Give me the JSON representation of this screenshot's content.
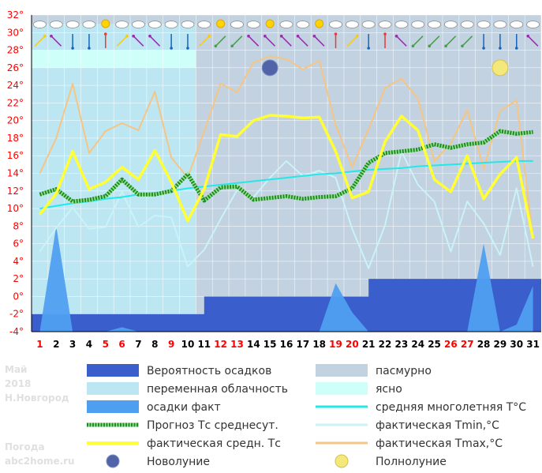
{
  "chart_data": {
    "type": "line",
    "title": "",
    "ylim": [
      -4,
      32
    ],
    "yticks": [
      "-4°",
      "-2°",
      "0°",
      "2°",
      "4°",
      "6°",
      "8°",
      "10°",
      "12°",
      "14°",
      "16°",
      "18°",
      "20°",
      "22°",
      "24°",
      "26°",
      "28°",
      "30°",
      "32°"
    ],
    "days": [
      "1",
      "2",
      "3",
      "4",
      "5",
      "6",
      "7",
      "8",
      "9",
      "10",
      "11",
      "12",
      "13",
      "14",
      "15",
      "16",
      "17",
      "18",
      "19",
      "20",
      "21",
      "22",
      "23",
      "24",
      "25",
      "26",
      "27",
      "28",
      "29",
      "30",
      "31"
    ],
    "day_colors": [
      "#ff0000",
      "#000000",
      "#000000",
      "#000000",
      "#ff0000",
      "#ff0000",
      "#000000",
      "#000000",
      "#ff0000",
      "#000000",
      "#000000",
      "#ff0000",
      "#ff0000",
      "#000000",
      "#000000",
      "#000000",
      "#000000",
      "#000000",
      "#ff0000",
      "#ff0000",
      "#000000",
      "#000000",
      "#000000",
      "#000000",
      "#000000",
      "#ff0000",
      "#ff0000",
      "#000000",
      "#000000",
      "#000000",
      "#000000"
    ],
    "watermark": {
      "month": "Май",
      "year": "2018",
      "city": "Н.Новгород",
      "site_line1": "Погода",
      "site_line2": "abc2home.ru"
    },
    "colors": {
      "probability": "#3a5fcd",
      "overcast": "#c2d2e0",
      "partly_cloudy": "#bde6f3",
      "clear": "#cffff9",
      "precip_fact": "#4f9ff0",
      "forecast_avg": "#1e8a2a",
      "actual_avg": "#ffff33",
      "climate_avg": "#22e8e8",
      "tmin": "#c9f3f7",
      "tmax": "#f5c584"
    },
    "sky_bands": [
      {
        "from": 1,
        "to": 10.5,
        "sky": "partly_cloudy"
      },
      {
        "from": 10.5,
        "to": 31,
        "sky": "overcast"
      }
    ],
    "probability_level": [
      -2,
      -2,
      -2,
      -2,
      -2,
      -2,
      -2,
      -2,
      -2,
      -2,
      0,
      0,
      0,
      0,
      0,
      0,
      0,
      0,
      0,
      0,
      2,
      2,
      2,
      2,
      2,
      2,
      2,
      2,
      2,
      2,
      2
    ],
    "series": [
      {
        "name": "фактическая Tmax,°C",
        "key": "tmax",
        "values": [
          14.0,
          18.0,
          24.2,
          16.3,
          18.8,
          19.7,
          18.9,
          23.3,
          15.8,
          13.5,
          18.8,
          24.2,
          23.2,
          26.6,
          27.3,
          27.0,
          25.8,
          26.8,
          19.5,
          14.7,
          19.0,
          23.7,
          24.8,
          22.5,
          15.4,
          17.4,
          21.2,
          14.5,
          21.1,
          22.3,
          6.5
        ]
      },
      {
        "name": "фактическая Tmin,°C",
        "key": "tmin",
        "values": [
          5.1,
          7.8,
          10.1,
          7.7,
          7.9,
          11.9,
          7.9,
          9.2,
          9.0,
          3.4,
          5.3,
          8.8,
          12.1,
          11.3,
          13.5,
          15.4,
          13.7,
          14.3,
          13.5,
          7.7,
          3.2,
          8.1,
          16.5,
          12.7,
          10.8,
          5.1,
          10.8,
          8.3,
          4.7,
          12.3,
          3.4
        ]
      },
      {
        "name": "средняя многолетняя T°C",
        "key": "climate_avg",
        "values": [
          10.0,
          10.3,
          10.6,
          10.8,
          11.1,
          11.3,
          11.6,
          11.8,
          12.0,
          12.3,
          12.5,
          12.7,
          12.9,
          13.1,
          13.3,
          13.5,
          13.7,
          13.9,
          14.0,
          14.2,
          14.4,
          14.5,
          14.6,
          14.8,
          14.9,
          15.0,
          15.1,
          15.2,
          15.3,
          15.4,
          15.4
        ]
      },
      {
        "name": "Прогноз Тс среднесут.",
        "key": "forecast_avg",
        "values": [
          11.6,
          12.2,
          10.8,
          11.0,
          11.4,
          13.3,
          11.6,
          11.6,
          12.0,
          13.9,
          10.9,
          12.4,
          12.5,
          11.0,
          11.2,
          11.4,
          11.1,
          11.3,
          11.4,
          12.3,
          15.2,
          16.3,
          16.5,
          16.7,
          17.3,
          16.9,
          17.3,
          17.5,
          18.8,
          18.5,
          18.7
        ]
      },
      {
        "name": "фактическая средн. Тс",
        "key": "actual_avg",
        "values": [
          9.3,
          11.7,
          16.5,
          12.2,
          13.0,
          14.7,
          13.3,
          16.6,
          13.0,
          8.6,
          12.2,
          18.4,
          18.2,
          20.0,
          20.6,
          20.5,
          20.3,
          20.4,
          16.5,
          11.2,
          11.9,
          17.6,
          20.5,
          18.9,
          13.3,
          11.9,
          16.0,
          11.1,
          13.9,
          15.8,
          6.6
        ]
      }
    ],
    "precipitation_fact": [
      -4,
      8,
      -4,
      -4,
      -4,
      -3.5,
      -4,
      -4,
      -4,
      -4,
      -4,
      -4,
      -4,
      -4,
      -4,
      -4,
      -4,
      -4,
      1.5,
      -1.8,
      -4,
      -4,
      -4,
      -4,
      -4,
      -4,
      -4,
      6,
      -4,
      -3.2,
      1.2
    ],
    "moons": [
      {
        "day": 15,
        "value": 26.0,
        "phase": "new"
      },
      {
        "day": 29,
        "value": 26.0,
        "phase": "full"
      }
    ],
    "weather_icons": [
      "cloud",
      "cloud",
      "cloud",
      "cloud",
      "sun",
      "cloud",
      "cloud",
      "cloud",
      "cloud",
      "cloud",
      "cloud",
      "sun",
      "cloud",
      "cloud",
      "sun",
      "cloud",
      "cloud",
      "sun",
      "cloud",
      "cloud",
      "cloud",
      "cloud",
      "cloud",
      "cloud",
      "cloud",
      "cloud",
      "cloud",
      "cloud",
      "cloud",
      "cloud",
      "cloud"
    ],
    "wind_arrows": [
      {
        "dir": "ne",
        "color": "#ffcc00"
      },
      {
        "dir": "nw",
        "color": "#9c27b0"
      },
      {
        "dir": "s",
        "color": "#1565c0"
      },
      {
        "dir": "s",
        "color": "#1565c0"
      },
      {
        "dir": "n",
        "color": "#e53935"
      },
      {
        "dir": "ne",
        "color": "#ffcc00"
      },
      {
        "dir": "nw",
        "color": "#9c27b0"
      },
      {
        "dir": "nw",
        "color": "#9c27b0"
      },
      {
        "dir": "s",
        "color": "#1565c0"
      },
      {
        "dir": "s",
        "color": "#1565c0"
      },
      {
        "dir": "ne",
        "color": "#ffcc00"
      },
      {
        "dir": "sw",
        "color": "#43a047"
      },
      {
        "dir": "sw",
        "color": "#43a047"
      },
      {
        "dir": "nw",
        "color": "#9c27b0"
      },
      {
        "dir": "nw",
        "color": "#9c27b0"
      },
      {
        "dir": "nw",
        "color": "#9c27b0"
      },
      {
        "dir": "nw",
        "color": "#9c27b0"
      },
      {
        "dir": "nw",
        "color": "#9c27b0"
      },
      {
        "dir": "n",
        "color": "#e53935"
      },
      {
        "dir": "ne",
        "color": "#ffcc00"
      },
      {
        "dir": "s",
        "color": "#1565c0"
      },
      {
        "dir": "n",
        "color": "#e53935"
      },
      {
        "dir": "nw",
        "color": "#9c27b0"
      },
      {
        "dir": "sw",
        "color": "#43a047"
      },
      {
        "dir": "sw",
        "color": "#43a047"
      },
      {
        "dir": "sw",
        "color": "#43a047"
      },
      {
        "dir": "sw",
        "color": "#43a047"
      },
      {
        "dir": "s",
        "color": "#1565c0"
      },
      {
        "dir": "s",
        "color": "#1565c0"
      },
      {
        "dir": "s",
        "color": "#1565c0"
      },
      {
        "dir": "nw",
        "color": "#9c27b0"
      }
    ],
    "legend": [
      {
        "key": "probability",
        "label": "Вероятность осадков",
        "kind": "box"
      },
      {
        "key": "overcast",
        "label": "пасмурно",
        "kind": "box"
      },
      {
        "key": "partly_cloudy",
        "label": "переменная облачность",
        "kind": "box"
      },
      {
        "key": "clear",
        "label": "ясно",
        "kind": "box"
      },
      {
        "key": "precip_fact",
        "label": "осадки факт",
        "kind": "box"
      },
      {
        "key": "climate_avg",
        "label": "средняя многолетняя T°C",
        "kind": "line"
      },
      {
        "key": "forecast_avg",
        "label": "Прогноз Тс среднесут.",
        "kind": "dotted"
      },
      {
        "key": "tmin",
        "label": "фактическая Tmin,°C",
        "kind": "line"
      },
      {
        "key": "actual_avg",
        "label": "фактическая средн. Тс",
        "kind": "line"
      },
      {
        "key": "tmax",
        "label": "фактическая Tmax,°C",
        "kind": "line"
      },
      {
        "key": "new_moon",
        "label": "Новолуние",
        "kind": "newmoon"
      },
      {
        "key": "full_moon",
        "label": "Полнолуние",
        "kind": "fullmoon"
      }
    ]
  }
}
